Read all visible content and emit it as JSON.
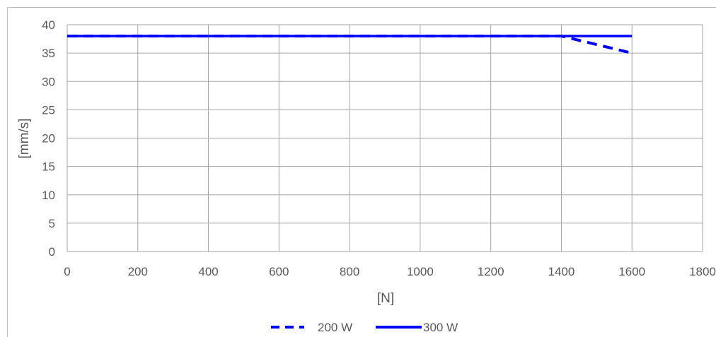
{
  "chart_data": {
    "type": "line",
    "title": "",
    "xlabel": "[N]",
    "ylabel": "[mm/s]",
    "xlim": [
      0,
      1800
    ],
    "ylim": [
      0,
      40
    ],
    "x_ticks": [
      "0",
      "200",
      "400",
      "600",
      "800",
      "1000",
      "1200",
      "1400",
      "1600",
      "1800"
    ],
    "y_ticks": [
      "0",
      "5",
      "10",
      "15",
      "20",
      "25",
      "30",
      "35",
      "40"
    ],
    "grid": true,
    "legend": "bottom",
    "series": [
      {
        "name": "200 W",
        "style": "dashed",
        "color": "#0000ff",
        "x": [
          0,
          200,
          400,
          600,
          800,
          1000,
          1200,
          1400,
          1600
        ],
        "y": [
          38,
          38,
          38,
          38,
          38,
          38,
          38,
          38,
          35
        ]
      },
      {
        "name": "300 W",
        "style": "solid",
        "color": "#0000ff",
        "x": [
          0,
          200,
          400,
          600,
          800,
          1000,
          1200,
          1400,
          1600
        ],
        "y": [
          38,
          38,
          38,
          38,
          38,
          38,
          38,
          38,
          38
        ]
      }
    ]
  }
}
